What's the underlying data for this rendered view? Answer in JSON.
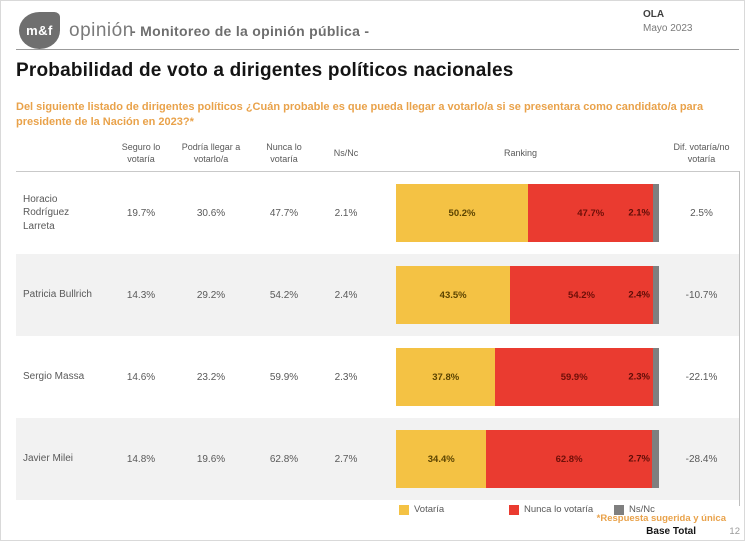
{
  "header": {
    "logo_text": "m&f",
    "logo_word": "opinión",
    "center_title": "- Monitoreo de la opinión pública -",
    "wave_label": "OLA",
    "wave_date": "Mayo 2023"
  },
  "title": "Probabilidad de voto a dirigentes políticos nacionales",
  "question": "Del siguiente listado de dirigentes políticos ¿Cuán probable es que pueda llegar a votarlo/a si se presentara como candidato/a para presidente de la Nación en 2023?*",
  "columns": {
    "seguro": "Seguro lo votaría",
    "podria": "Podría llegar a votarlo/a",
    "nunca": "Nunca lo votaría",
    "nsnc": "Ns/Nc",
    "ranking": "Ranking",
    "diff": "Dif. votaría/no votaría"
  },
  "chart_data": {
    "type": "bar",
    "stacked": true,
    "orientation": "horizontal",
    "xlim": [
      0,
      100
    ],
    "legend_position": "bottom",
    "categories": [
      "Horacio Rodríguez Larreta",
      "Patricia Bullrich",
      "Sergio Massa",
      "Javier Milei"
    ],
    "table": {
      "seguro_lo_votaria": [
        19.7,
        14.3,
        14.6,
        14.8
      ],
      "podria_llegar_a_votarlo": [
        30.6,
        29.2,
        23.2,
        19.6
      ],
      "nunca_lo_votaria": [
        47.7,
        54.2,
        59.9,
        62.8
      ],
      "ns_nc": [
        2.1,
        2.4,
        2.3,
        2.7
      ]
    },
    "series": [
      {
        "name": "Votaría",
        "color": "#F4C244",
        "values": [
          50.2,
          43.5,
          37.8,
          34.4
        ]
      },
      {
        "name": "Nunca lo votaría",
        "color": "#EA3B30",
        "values": [
          47.7,
          54.2,
          59.9,
          62.8
        ]
      },
      {
        "name": "Ns/Nc",
        "color": "#7F7F7F",
        "values": [
          2.1,
          2.4,
          2.3,
          2.7
        ]
      }
    ],
    "diff_votaria_no_votaria": [
      2.5,
      -10.7,
      -22.1,
      -28.4
    ]
  },
  "legend": [
    {
      "label": "Votaría",
      "color": "#F4C244"
    },
    {
      "label": "Nunca lo votaría",
      "color": "#EA3B30"
    },
    {
      "label": "Ns/Nc",
      "color": "#7F7F7F"
    }
  ],
  "footer": {
    "note": "*Respuesta sugerida y única",
    "base": "Base Total",
    "page": "12"
  },
  "colors": {
    "votaria": "#F4C244",
    "nunca": "#EA3B30",
    "nsnc": "#7F7F7F",
    "accent_orange": "#E9A24A",
    "row_alt": "#F2F2F2"
  }
}
